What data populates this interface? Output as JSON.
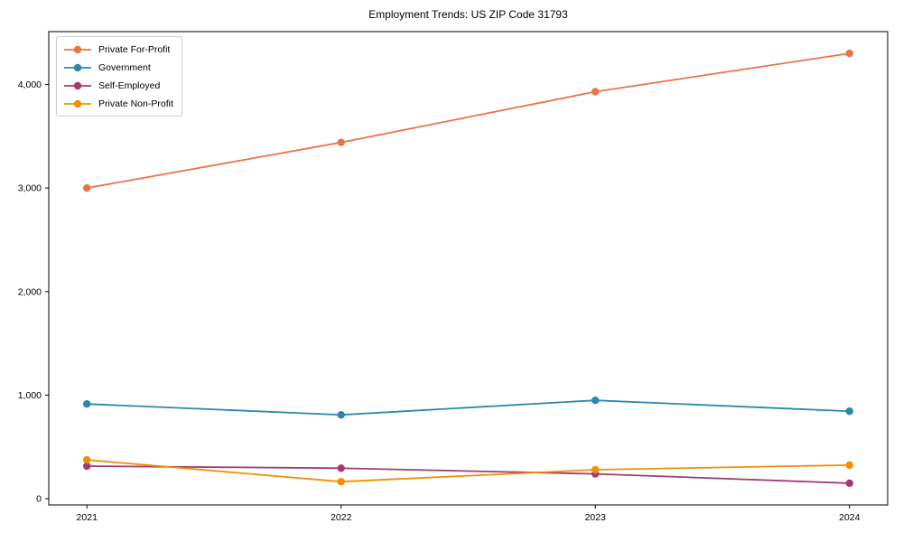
{
  "title": "Employment Trends: US ZIP Code 31793",
  "chart_data": {
    "type": "line",
    "x": [
      2021,
      2022,
      2023,
      2024
    ],
    "categories": [
      "2021",
      "2022",
      "2023",
      "2024"
    ],
    "series": [
      {
        "name": "Private For-Profit",
        "color": "#E8744A",
        "values": [
          3000,
          3440,
          3930,
          4300
        ]
      },
      {
        "name": "Government",
        "color": "#2E86AB",
        "values": [
          915,
          810,
          950,
          845
        ]
      },
      {
        "name": "Self-Employed",
        "color": "#A23B72",
        "values": [
          315,
          295,
          240,
          150
        ]
      },
      {
        "name": "Private Non-Profit",
        "color": "#F18F01",
        "values": [
          375,
          165,
          280,
          325
        ]
      }
    ],
    "y_ticks": [
      0,
      1000,
      2000,
      3000,
      4000
    ],
    "y_tick_labels": [
      "0",
      "1,000",
      "2,000",
      "3,000",
      "4,000"
    ],
    "ylim": [
      -60,
      4510
    ],
    "xlim": [
      2020.85,
      2024.15
    ],
    "xlabel": "",
    "ylabel": "",
    "grid": false,
    "legend_position": "upper-left",
    "marker": "circle",
    "axis_color": "#000000",
    "background_color": "#ffffff"
  }
}
